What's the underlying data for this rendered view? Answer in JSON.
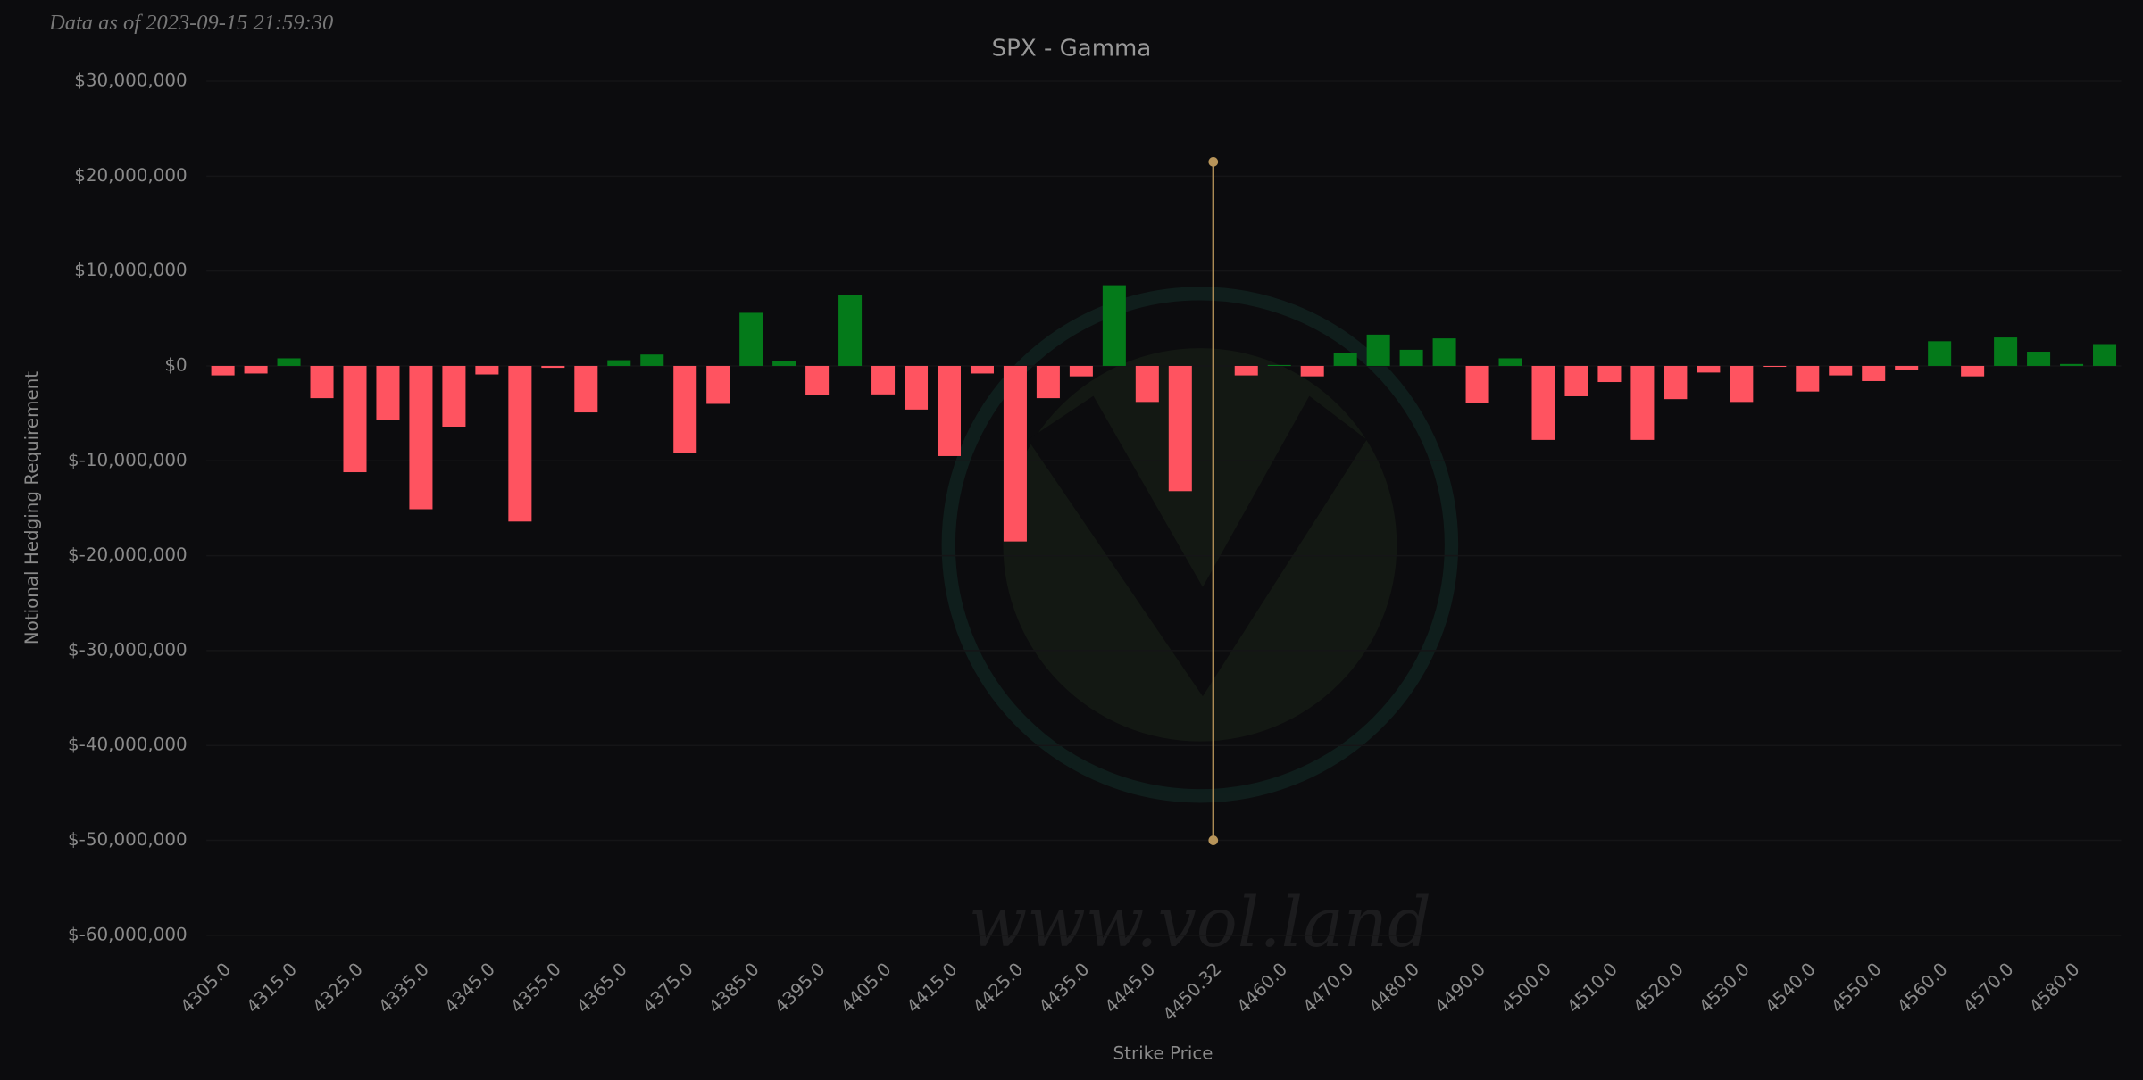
{
  "chart_data": {
    "type": "bar",
    "timestamp": "Data as of 2023-09-15 21:59:30",
    "title": "SPX - Gamma",
    "x_label": "Strike Price",
    "y_label": "Notional Hedging Requirement",
    "watermark": "www.vol.land",
    "categories": [
      "4305.0",
      null,
      "4315.0",
      null,
      "4325.0",
      null,
      "4335.0",
      null,
      "4345.0",
      null,
      "4355.0",
      null,
      "4365.0",
      null,
      "4375.0",
      null,
      "4385.0",
      null,
      "4395.0",
      null,
      "4405.0",
      null,
      "4415.0",
      null,
      "4425.0",
      null,
      "4435.0",
      null,
      "4445.0",
      null,
      "4450.32",
      null,
      "4460.0",
      null,
      "4470.0",
      null,
      "4480.0",
      null,
      "4490.0",
      null,
      "4500.0",
      null,
      "4510.0",
      null,
      "4520.0",
      null,
      "4530.0",
      null,
      "4540.0",
      null,
      "4550.0",
      null,
      "4560.0",
      null,
      "4570.0",
      null,
      "4580.0",
      null
    ],
    "values": [
      -1000000,
      -800000,
      800000,
      -3400000,
      -11200000,
      -5700000,
      -15100000,
      -6400000,
      -900000,
      -16400000,
      -200000,
      -4900000,
      600000,
      1200000,
      -9200000,
      -4000000,
      5600000,
      500000,
      -3100000,
      7500000,
      -3000000,
      -4600000,
      -9500000,
      -800000,
      -18500000,
      -3400000,
      -1100000,
      8500000,
      -3800000,
      -13200000,
      null,
      -1000000,
      100000,
      -1100000,
      1400000,
      3300000,
      1700000,
      2900000,
      -3900000,
      800000,
      -7800000,
      -3200000,
      -1700000,
      -7800000,
      -3500000,
      -700000,
      -3800000,
      -100000,
      -2700000,
      -1000000,
      -1600000,
      -400000,
      2600000,
      -1100000,
      3000000,
      1500000,
      200000,
      2300000
    ],
    "positive_color": "#047a1a",
    "negative_color": "#ff5360",
    "ylim": [
      -60000000,
      30000000
    ],
    "yticks": [
      {
        "value": -60000000,
        "label": "$-60,000,000"
      },
      {
        "value": -50000000,
        "label": "$-50,000,000"
      },
      {
        "value": -40000000,
        "label": "$-40,000,000"
      },
      {
        "value": -30000000,
        "label": "$-30,000,000"
      },
      {
        "value": -20000000,
        "label": "$-20,000,000"
      },
      {
        "value": -10000000,
        "label": "$-10,000,000"
      },
      {
        "value": 0,
        "label": "$0"
      },
      {
        "value": 10000000,
        "label": "$10,000,000"
      },
      {
        "value": 20000000,
        "label": "$20,000,000"
      },
      {
        "value": 30000000,
        "label": "$30,000,000"
      }
    ],
    "grid": true,
    "spot_line": {
      "at": "4450.32",
      "from": 21500000,
      "to": -50000000,
      "color": "#b8955a"
    }
  }
}
